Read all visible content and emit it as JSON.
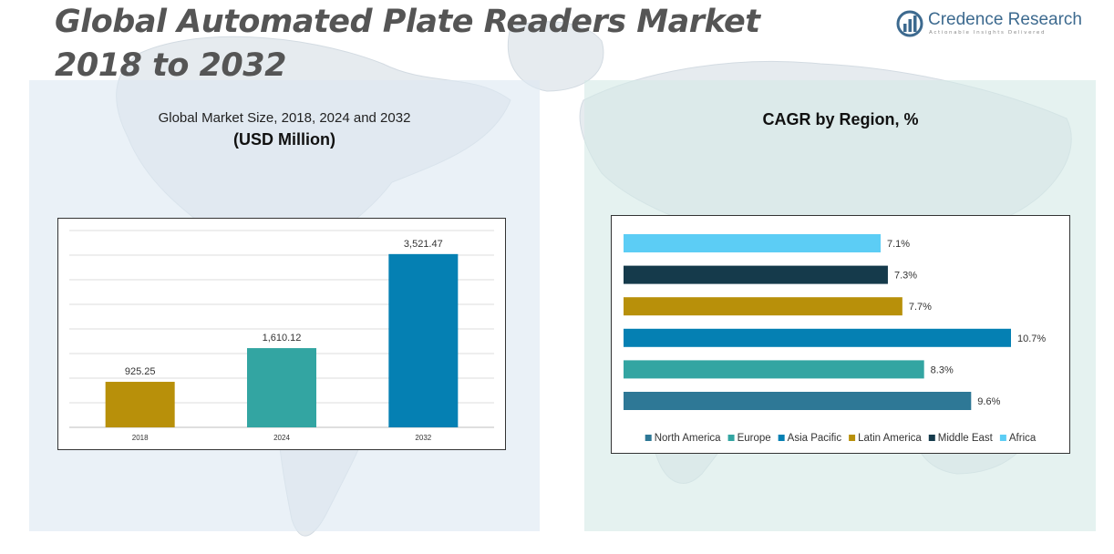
{
  "title": {
    "line1": "Global Automated Plate Readers Market",
    "line2": "2018 to 2032"
  },
  "logo": {
    "name": "Credence Research",
    "tagline": "Actionable Insights Delivered",
    "icon": "credence-logo-icon"
  },
  "left_chart": {
    "subtitle": "Global Market Size, 2018, 2024 and 2032",
    "unit": "(USD Million)"
  },
  "right_chart": {
    "title": "CAGR by Region, %"
  },
  "colors": {
    "gold": "#B8900A",
    "teal": "#33A5A2",
    "blue": "#0580B3",
    "steel": "#2E7896",
    "dark": "#153A4B",
    "sky": "#5CCDF5"
  },
  "chart_data": [
    {
      "type": "bar",
      "title": "Global Market Size, 2018, 2024 and 2032",
      "ylabel": "(USD Million)",
      "categories": [
        "2018",
        "2024",
        "2032"
      ],
      "values": [
        925.25,
        1610.12,
        3521.47
      ],
      "value_labels": [
        "925.25",
        "1,610.12",
        "3,521.47"
      ],
      "colors": [
        "#B8900A",
        "#33A5A2",
        "#0580B3"
      ],
      "ylim": [
        0,
        4000
      ],
      "grid": true
    },
    {
      "type": "bar",
      "orientation": "horizontal",
      "title": "CAGR by Region, %",
      "series": [
        {
          "name": "North America",
          "value": 9.6,
          "label": "9.6%",
          "color": "#2E7896"
        },
        {
          "name": "Europe",
          "value": 8.3,
          "label": "8.3%",
          "color": "#33A5A2"
        },
        {
          "name": "Asia Pacific",
          "value": 10.7,
          "label": "10.7%",
          "color": "#0580B3"
        },
        {
          "name": "Latin America",
          "value": 7.7,
          "label": "7.7%",
          "color": "#B8900A"
        },
        {
          "name": "Middle East",
          "value": 7.3,
          "label": "7.3%",
          "color": "#153A4B"
        },
        {
          "name": "Africa",
          "value": 7.1,
          "label": "7.1%",
          "color": "#5CCDF5"
        }
      ],
      "xlim": [
        0,
        10.7
      ],
      "legend": "bottom",
      "grid": false
    }
  ]
}
